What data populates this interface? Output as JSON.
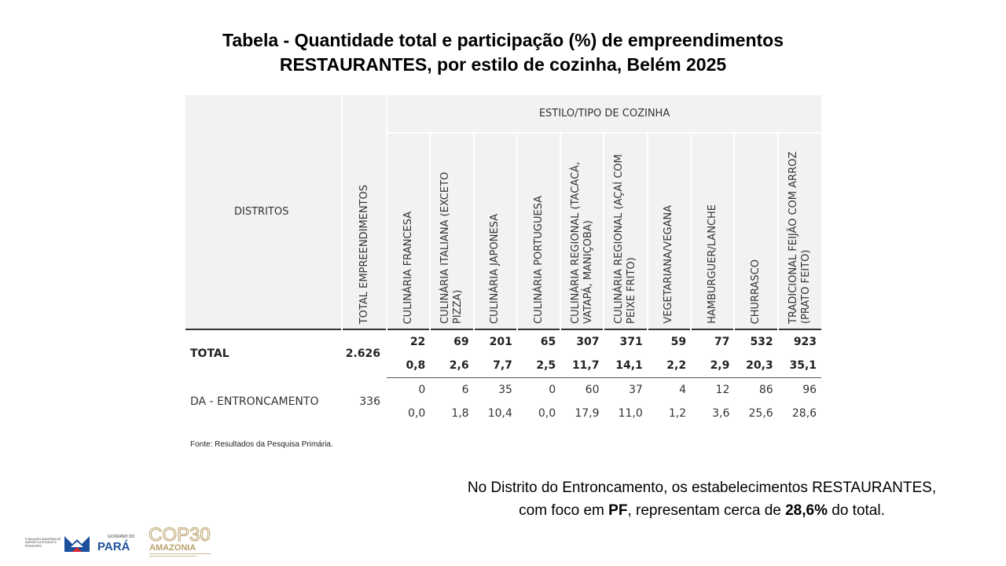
{
  "title": {
    "line1": "Tabela -  Quantidade total e participação (%) de empreendimentos",
    "line2": "RESTAURANTES, por estilo de cozinha, Belém 2025"
  },
  "table": {
    "districts_header": "DISTRITOS",
    "total_header": "TOTAL EMPREENDIMENTOS",
    "group_header": "ESTILO/TIPO DE COZINHA",
    "categories": [
      "CULINÁRIA FRANCESA",
      "CULINÁRIA ITALIANA (EXCETO PIZZA)",
      "CULINÁRIA JAPONESA",
      "CULINÁRIA PORTUGUESA",
      "CULINÁRIA REGIONAL (TACACÁ, VATAPÁ, MANIÇOBA)",
      "CULINÁRIA REGIONAL (AÇAÍ COM PEIXE FRITO)",
      "VEGETARIANA/VEGANA",
      "HAMBURGUER/LANCHE",
      "CHURRASCO",
      "TRADICIONAL FEIJÃO COM ARROZ (PRATO FEITO)"
    ],
    "rows": [
      {
        "district": "TOTAL",
        "total": "2.626",
        "counts": [
          "22",
          "69",
          "201",
          "65",
          "307",
          "371",
          "59",
          "77",
          "532",
          "923"
        ],
        "percents": [
          "0,8",
          "2,6",
          "7,7",
          "2,5",
          "11,7",
          "14,1",
          "2,2",
          "2,9",
          "20,3",
          "35,1"
        ]
      },
      {
        "district": "DA - ENTRONCAMENTO",
        "total": "336",
        "counts": [
          "0",
          "6",
          "35",
          "0",
          "60",
          "37",
          "4",
          "12",
          "86",
          "96"
        ],
        "percents": [
          "0,0",
          "1,8",
          "10,4",
          "0,0",
          "17,9",
          "11,0",
          "1,2",
          "3,6",
          "25,6",
          "28,6"
        ]
      }
    ]
  },
  "source": "Fonte: Resultados da Pesquisa Primária.",
  "note": {
    "line1": "No Distrito do Entroncamento, os estabelecimentos RESTAURANTES,",
    "line2_pre": "com foco em ",
    "line2_pf": "PF",
    "line2_mid": ", representam cerca de ",
    "line2_pct": "28,6%",
    "line2_post": " do total."
  },
  "logos": {
    "fapespa": "FUNDAÇÃO AMAZÔNIA DE AMPARO A ESTUDOS E PESQUISAS",
    "gov_small": "GOVERNO DO",
    "gov_big": "PARÁ",
    "cop_top": "COP30",
    "cop_bottom": "AMAZONIA"
  },
  "colors": {
    "header_bg": "#f2f2f2",
    "para_blue": "#1c4f9c",
    "para_red": "#d7262e",
    "cop_gold": "#b9a06a"
  }
}
